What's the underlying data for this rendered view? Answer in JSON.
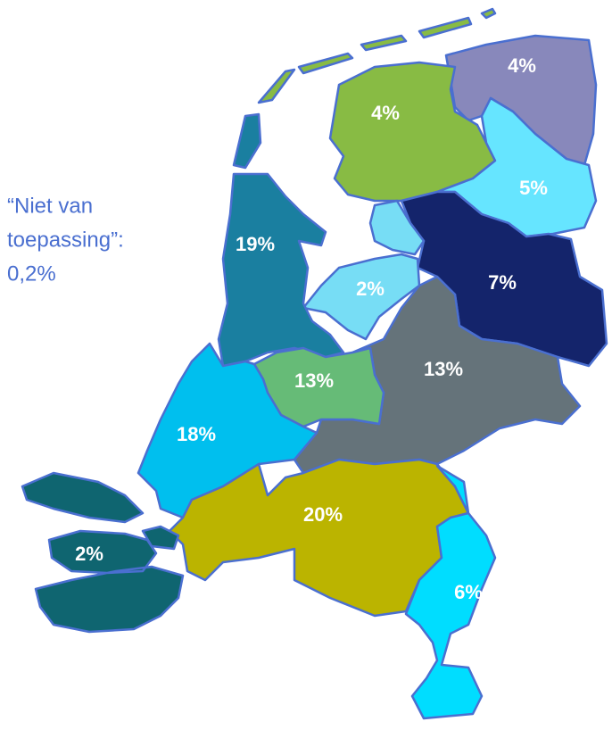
{
  "regions": [
    {
      "label": "4%"
    },
    {
      "label": "4%"
    },
    {
      "label": "5%"
    },
    {
      "label": "7%"
    },
    {
      "label": "2%"
    },
    {
      "label": "19%"
    },
    {
      "label": "13%"
    },
    {
      "label": "13%"
    },
    {
      "label": "18%"
    },
    {
      "label": "20%"
    },
    {
      "label": "6%"
    },
    {
      "label": "2%"
    }
  ],
  "note": [
    "“Niet van",
    "toepassing”:",
    "0,2%"
  ]
}
